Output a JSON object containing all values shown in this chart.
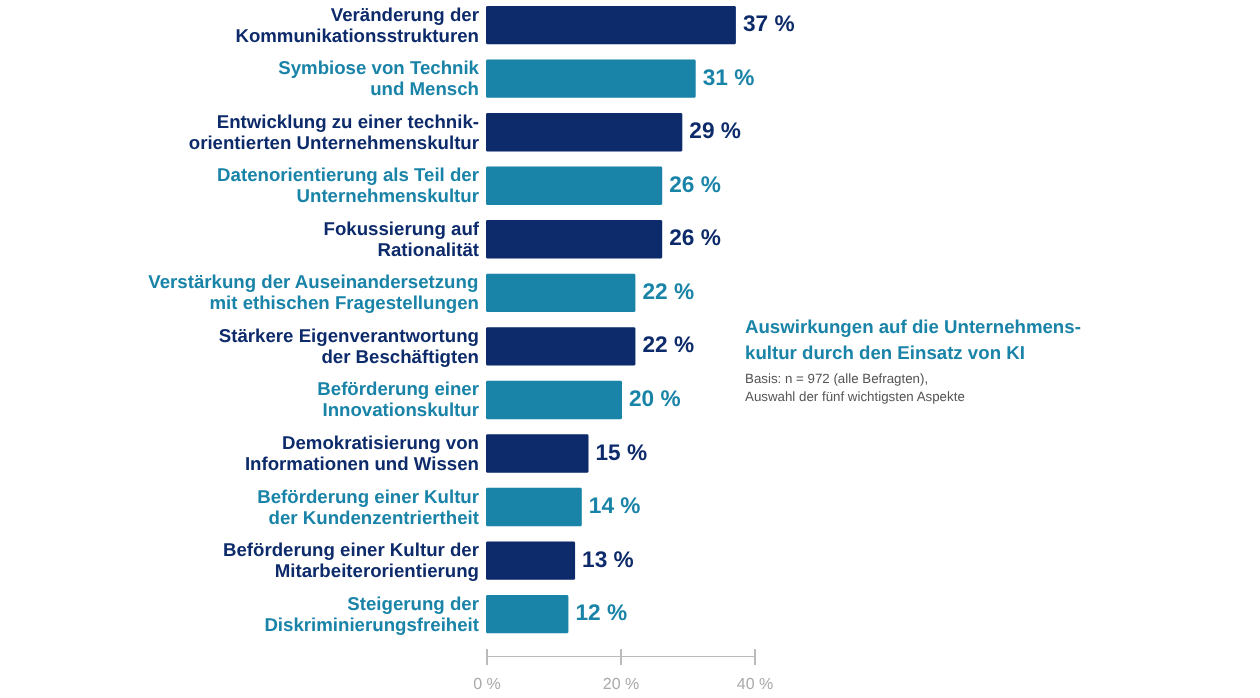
{
  "chart_data": {
    "type": "bar",
    "orientation": "horizontal",
    "title": "Auswirkungen auf die Unternehmens-\nkultur durch den Einsatz von KI",
    "annotations": [
      "Basis: n = 972 (alle Befragten),\nAuswahl der fünf wichtigsten Aspekte"
    ],
    "categories": [
      "Veränderung der\nKommunikationsstrukturen",
      "Symbiose von Technik\nund Mensch",
      "Entwicklung zu einer technik-\norientierten Unternehmenskultur",
      "Datenorientierung als Teil der\nUnternehmenskultur",
      "Fokussierung auf\nRationalität",
      "Verstärkung der Auseinandersetzung\nmit ethischen Fragestellungen",
      "Stärkere Eigenverantwortung\nder Beschäftigten",
      "Beförderung einer\nInnovationskultur",
      "Demokratisierung von\nInformationen und Wissen",
      "Beförderung einer Kultur\nder Kundenzentriertheit",
      "Beförderung einer Kultur der\nMitarbeiterorientierung",
      "Steigerung der\nDiskriminierungsfreiheit"
    ],
    "values": [
      37,
      31,
      29,
      26,
      26,
      22,
      22,
      20,
      15,
      14,
      13,
      12
    ],
    "value_labels": [
      "37 %",
      "31 %",
      "29 %",
      "26 %",
      "26 %",
      "22 %",
      "22 %",
      "20 %",
      "15 %",
      "14 %",
      "13 %",
      "12 %"
    ],
    "colors": [
      "#0d2b6b",
      "#1a84a8",
      "#0d2b6b",
      "#1a84a8",
      "#0d2b6b",
      "#1a84a8",
      "#0d2b6b",
      "#1a84a8",
      "#0d2b6b",
      "#1a84a8",
      "#0d2b6b",
      "#1a84a8"
    ],
    "xlim": [
      0,
      40
    ],
    "xticks": [
      {
        "value": 0,
        "label": "0 %"
      },
      {
        "value": 20,
        "label": "20 %"
      },
      {
        "value": 40,
        "label": "40 %"
      }
    ],
    "grid": false
  }
}
